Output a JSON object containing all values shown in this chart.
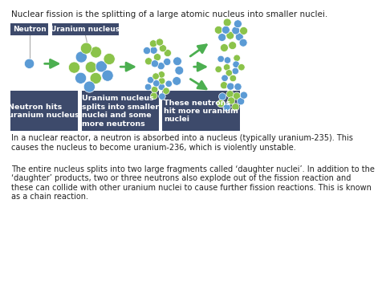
{
  "title_text": "Nuclear fission is the splitting of a large atomic nucleus into smaller nuclei.",
  "label1_text": "Neutron",
  "label2_text": "Uranium nucleus",
  "box1_text": "Neutron hits\nuranium nucleus",
  "box2_text": "Uranium nucleus\nsplits into smaller\nnuclei and some\nmore neutrons",
  "box3_text": "These neutrons\nhit more uranium\nnuclei",
  "para1": "In a nuclear reactor, a neutron is absorbed into a nucleus (typically uranium-235). This\ncauses the nucleus to become uranium-236, which is violently unstable.",
  "para2": "The entire nucleus splits into two large fragments called ‘daughter nuclei’. In addition to the\n‘daughter’ products, two or three neutrons also explode out of the fission reaction and\nthese can collide with other uranium nuclei to cause further fission reactions. This is known\nas a chain reaction.",
  "bg_color": "#ffffff",
  "box_color": "#3d4a6b",
  "text_color_white": "#ffffff",
  "text_color_dark": "#222222",
  "green_color": "#8bc34a",
  "blue_color": "#5b9bd5",
  "arrow_color": "#4caf50",
  "line_color": "#aaaaaa"
}
